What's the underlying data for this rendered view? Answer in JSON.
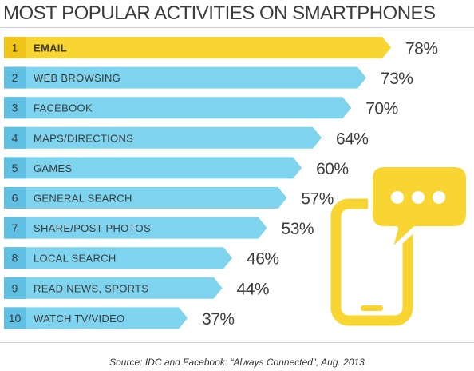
{
  "title": "MOST POPULAR ACTIVITIES ON SMARTPHONES",
  "source": "Source: IDC and Facebook: “Always Connected”, Aug. 2013",
  "colors": {
    "highlight": "#f9d532",
    "bar": "#7ed3ef",
    "rank_box_highlight": "#f0c419",
    "rank_box": "#5fc0e3",
    "text": "#3c3c3c",
    "phone": "#f9d532"
  },
  "chart_data": {
    "type": "bar",
    "orientation": "horizontal",
    "categories": [
      "EMAIL",
      "WEB BROWSING",
      "FACEBOOK",
      "MAPS/DIRECTIONS",
      "GAMES",
      "GENERAL SEARCH",
      "SHARE/POST PHOTOS",
      "LOCAL SEARCH",
      "READ NEWS, SPORTS",
      "WATCH TV/VIDEO"
    ],
    "ranks": [
      "1",
      "2",
      "3",
      "4",
      "5",
      "6",
      "7",
      "8",
      "9",
      "10"
    ],
    "values": [
      78,
      73,
      70,
      64,
      60,
      57,
      53,
      46,
      44,
      37
    ],
    "value_labels": [
      "78%",
      "73%",
      "70%",
      "64%",
      "60%",
      "57%",
      "53%",
      "46%",
      "44%",
      "37%"
    ],
    "highlight_index": 0
  },
  "decoration": {
    "icon": "smartphone-chat-bubble-icon"
  }
}
